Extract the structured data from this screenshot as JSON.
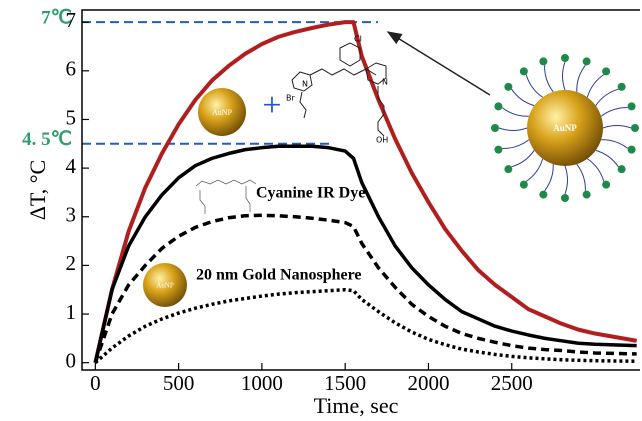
{
  "chart_data": {
    "type": "line",
    "x_label": "Time, sec",
    "y_label": "ΔT, °C",
    "x": [
      0,
      100,
      200,
      300,
      400,
      500,
      600,
      700,
      800,
      900,
      1000,
      1100,
      1200,
      1300,
      1400,
      1500,
      1550,
      1600,
      1700,
      1800,
      1900,
      2000,
      2100,
      2200,
      2300,
      2400,
      2500,
      2600,
      2700,
      2800,
      2900,
      3000,
      3250
    ],
    "series": [
      {
        "color": "#b01e1e",
        "style": "solid",
        "values": [
          0,
          1.5,
          2.7,
          3.6,
          4.3,
          4.9,
          5.4,
          5.8,
          6.1,
          6.35,
          6.55,
          6.7,
          6.8,
          6.88,
          6.95,
          7.0,
          7.0,
          6.3,
          5.4,
          4.6,
          3.9,
          3.3,
          2.75,
          2.3,
          1.9,
          1.6,
          1.35,
          1.1,
          0.95,
          0.8,
          0.68,
          0.6,
          0.45
        ]
      },
      {
        "color": "#000000",
        "style": "solid",
        "values": [
          0,
          1.5,
          2.4,
          3.0,
          3.45,
          3.8,
          4.05,
          4.2,
          4.3,
          4.38,
          4.42,
          4.45,
          4.45,
          4.45,
          4.42,
          4.35,
          4.2,
          3.7,
          3.0,
          2.4,
          1.95,
          1.6,
          1.3,
          1.05,
          0.9,
          0.75,
          0.65,
          0.57,
          0.5,
          0.45,
          0.4,
          0.38,
          0.35
        ]
      },
      {
        "color": "#000000",
        "style": "dashed",
        "values": [
          0,
          1.0,
          1.6,
          2.0,
          2.35,
          2.6,
          2.78,
          2.9,
          2.98,
          3.02,
          3.03,
          3.02,
          3.0,
          2.97,
          2.93,
          2.88,
          2.8,
          2.45,
          1.95,
          1.55,
          1.2,
          0.95,
          0.75,
          0.6,
          0.5,
          0.42,
          0.35,
          0.3,
          0.27,
          0.25,
          0.22,
          0.2,
          0.18
        ]
      },
      {
        "color": "#000000",
        "style": "dotted",
        "values": [
          0,
          0.3,
          0.55,
          0.75,
          0.9,
          1.02,
          1.12,
          1.2,
          1.27,
          1.32,
          1.37,
          1.41,
          1.44,
          1.46,
          1.48,
          1.5,
          1.48,
          1.3,
          1.05,
          0.82,
          0.63,
          0.48,
          0.37,
          0.28,
          0.22,
          0.17,
          0.13,
          0.1,
          0.08,
          0.06,
          0.05,
          0.04,
          0.03
        ]
      }
    ],
    "xlim": [
      -80,
      3270
    ],
    "ylim": [
      -0.15,
      7.25
    ],
    "xticks": [
      0,
      500,
      1000,
      1500,
      2000,
      2500
    ],
    "yticks": [
      0,
      1,
      2,
      3,
      4,
      5,
      6,
      7
    ],
    "reference_lines": [
      {
        "value": 7,
        "label": "7℃"
      },
      {
        "value": 4.5,
        "label": "4. 5℃"
      }
    ],
    "annotations": {
      "dye": "Cyanine IR Dye",
      "nanosphere": "20 nm Gold Nanosphere",
      "particle": "AuNP",
      "plus": "+"
    },
    "molecule_labels": [
      "Cl",
      "N",
      "N",
      "Br",
      "OH"
    ]
  }
}
